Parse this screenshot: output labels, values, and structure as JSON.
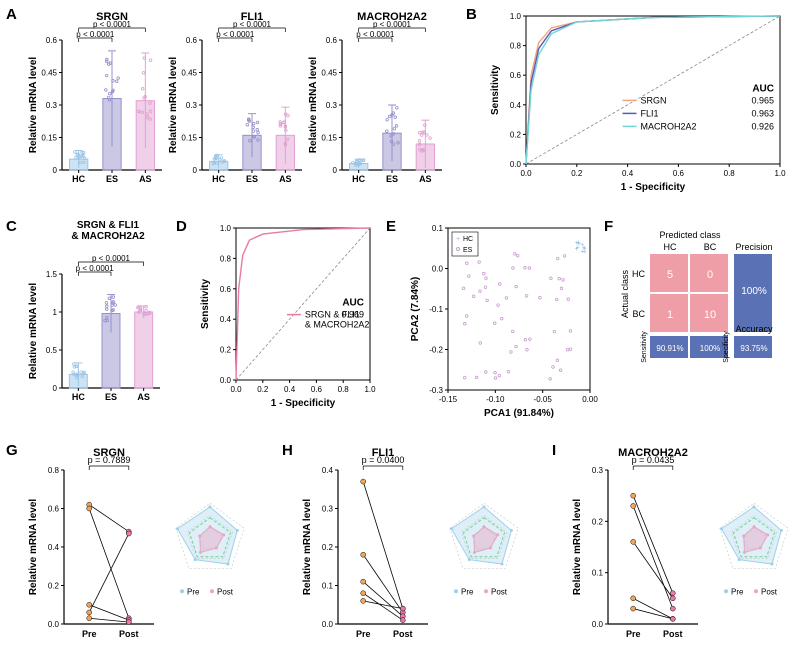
{
  "panels": {
    "A": {
      "label": "A",
      "ylabel": "Relative mRNA level",
      "charts": [
        {
          "title": "SRGN",
          "ylim": [
            0,
            0.6
          ],
          "ytick_step": 0.15,
          "groups": [
            "HC",
            "ES",
            "AS"
          ],
          "bars": [
            0.05,
            0.33,
            0.32
          ],
          "err": [
            0.04,
            0.22,
            0.22
          ],
          "colors": [
            "#9cc5e7",
            "#9591cc",
            "#e2a0d3"
          ],
          "pvals": [
            {
              "txt": "p < 0.0001",
              "pair": [
                0,
                1
              ]
            },
            {
              "txt": "p < 0.0001",
              "pair": [
                0,
                2
              ]
            }
          ]
        },
        {
          "title": "FLI1",
          "ylim": [
            0,
            0.6
          ],
          "ytick_step": 0.15,
          "groups": [
            "HC",
            "ES",
            "AS"
          ],
          "bars": [
            0.04,
            0.16,
            0.16
          ],
          "err": [
            0.03,
            0.1,
            0.13
          ],
          "colors": [
            "#9cc5e7",
            "#9591cc",
            "#e2a0d3"
          ],
          "pvals": [
            {
              "txt": "p < 0.0001",
              "pair": [
                0,
                1
              ]
            },
            {
              "txt": "p < 0.0001",
              "pair": [
                0,
                2
              ]
            }
          ]
        },
        {
          "title": "MACROH2A2",
          "ylim": [
            0,
            0.6
          ],
          "ytick_step": 0.15,
          "groups": [
            "HC",
            "ES",
            "AS"
          ],
          "bars": [
            0.03,
            0.17,
            0.12
          ],
          "err": [
            0.02,
            0.13,
            0.11
          ],
          "colors": [
            "#9cc5e7",
            "#9591cc",
            "#e2a0d3"
          ],
          "pvals": [
            {
              "txt": "p < 0.0001",
              "pair": [
                0,
                1
              ]
            },
            {
              "txt": "p < 0.0001",
              "pair": [
                0,
                2
              ]
            }
          ]
        }
      ]
    },
    "B": {
      "label": "B",
      "title_auc": "AUC",
      "xlabel": "1 - Specificity",
      "ylabel": "Sensitivity",
      "xlim": [
        0,
        1
      ],
      "ylim": [
        0,
        1
      ],
      "tick_step": 0.2,
      "series": [
        {
          "name": "SRGN",
          "color": "#f4a27a",
          "auc": "0.965"
        },
        {
          "name": "FLI1",
          "color": "#5a5ab5",
          "auc": "0.963"
        },
        {
          "name": "MACROH2A2",
          "color": "#6fd6d6",
          "auc": "0.926"
        }
      ]
    },
    "C": {
      "label": "C",
      "title": "SRGN & FLI1\n& MACROH2A2",
      "ylabel": "Relative mRNA level",
      "ylim": [
        0,
        1.5
      ],
      "ytick_step": 0.5,
      "groups": [
        "HC",
        "ES",
        "AS"
      ],
      "bars": [
        0.18,
        0.98,
        1.0
      ],
      "err": [
        0.15,
        0.25,
        0.08
      ],
      "colors": [
        "#9cc5e7",
        "#9591cc",
        "#e2a0d3"
      ],
      "pvals": [
        {
          "txt": "p < 0.0001",
          "pair": [
            0,
            1
          ]
        },
        {
          "txt": "p < 0.0001",
          "pair": [
            0,
            2
          ]
        }
      ]
    },
    "D": {
      "label": "D",
      "xlabel": "1 - Specificity",
      "ylabel": "Sensitivity",
      "xlim": [
        0,
        1
      ],
      "ylim": [
        0,
        1
      ],
      "tick_step": 0.2,
      "series": [
        {
          "name": "SRGN & FLI1\n& MACROH2A2",
          "color": "#e87aa8",
          "auc": "0.969"
        }
      ],
      "title_auc": "AUC"
    },
    "E": {
      "label": "E",
      "xlabel": "PCA1 (91.84%)",
      "ylabel": "PCA2 (7.84%)",
      "xlim": [
        -0.15,
        0.0
      ],
      "ylim": [
        -0.3,
        0.1
      ],
      "xticks": [
        -0.15,
        -0.1,
        -0.05,
        0.0
      ],
      "yticks": [
        -0.3,
        -0.2,
        -0.1,
        0.0,
        0.1
      ],
      "legend": [
        "HC",
        "ES"
      ],
      "colors": {
        "HC": "#8fb8e0",
        "ES": "#c99ed0"
      }
    },
    "F": {
      "label": "F",
      "header": "Predicted class",
      "cols": [
        "HC",
        "BC"
      ],
      "rows": [
        "HC",
        "BC"
      ],
      "side": "Actual class",
      "cells": [
        [
          "5",
          "0"
        ],
        [
          "1",
          "10"
        ]
      ],
      "metrics": {
        "Sensitivity": "90.91%",
        "Specificity": "100%",
        "Precision": "100%",
        "Accuracy": "93.75%"
      },
      "cell_color": "#ef9da6",
      "metric_color": "#5a72b5"
    },
    "G": {
      "label": "G",
      "title": "SRGN",
      "ylabel": "Relative mRNA level",
      "ylim": [
        0,
        0.8
      ],
      "ytick_step": 0.2,
      "groups": [
        "Pre",
        "Post"
      ],
      "pval": "p = 0.7889",
      "pre_color": "#f2a65a",
      "post_color": "#e87aa8",
      "pairs": [
        [
          0.62,
          0.48
        ],
        [
          0.6,
          0.03
        ],
        [
          0.1,
          0.02
        ],
        [
          0.06,
          0.47
        ],
        [
          0.03,
          0.01
        ]
      ],
      "radar_colors": {
        "pre": "#a0d0e8",
        "post": "#e8a6c2"
      }
    },
    "H": {
      "label": "H",
      "title": "FLI1",
      "ylabel": "Relative mRNA level",
      "ylim": [
        0,
        0.4
      ],
      "ytick_step": 0.1,
      "groups": [
        "Pre",
        "Post"
      ],
      "pval": "p = 0.0400",
      "pre_color": "#f2a65a",
      "post_color": "#e87aa8",
      "pairs": [
        [
          0.37,
          0.04
        ],
        [
          0.18,
          0.03
        ],
        [
          0.11,
          0.02
        ],
        [
          0.08,
          0.01
        ],
        [
          0.06,
          0.04
        ]
      ],
      "radar_colors": {
        "pre": "#a0d0e8",
        "post": "#e8a6c2"
      }
    },
    "I": {
      "label": "I",
      "title": "MACROH2A2",
      "ylabel": "Relative mRNA level",
      "ylim": [
        0,
        0.3
      ],
      "ytick_step": 0.1,
      "groups": [
        "Pre",
        "Post"
      ],
      "pval": "p = 0.0435",
      "pre_color": "#f2a65a",
      "post_color": "#e87aa8",
      "pairs": [
        [
          0.25,
          0.06
        ],
        [
          0.23,
          0.03
        ],
        [
          0.16,
          0.05
        ],
        [
          0.05,
          0.01
        ],
        [
          0.03,
          0.01
        ]
      ],
      "radar_colors": {
        "pre": "#a0d0e8",
        "post": "#e8a6c2"
      }
    }
  }
}
